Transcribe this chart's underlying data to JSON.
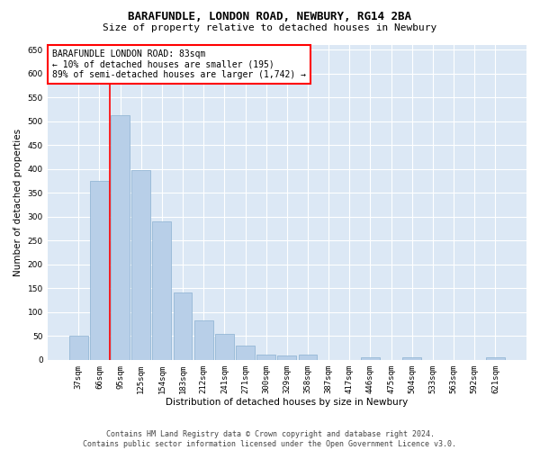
{
  "title": "BARAFUNDLE, LONDON ROAD, NEWBURY, RG14 2BA",
  "subtitle": "Size of property relative to detached houses in Newbury",
  "xlabel": "Distribution of detached houses by size in Newbury",
  "ylabel": "Number of detached properties",
  "categories": [
    "37sqm",
    "66sqm",
    "95sqm",
    "125sqm",
    "154sqm",
    "183sqm",
    "212sqm",
    "241sqm",
    "271sqm",
    "300sqm",
    "329sqm",
    "358sqm",
    "387sqm",
    "417sqm",
    "446sqm",
    "475sqm",
    "504sqm",
    "533sqm",
    "563sqm",
    "592sqm",
    "621sqm"
  ],
  "values": [
    50,
    375,
    512,
    398,
    291,
    142,
    82,
    54,
    29,
    11,
    9,
    11,
    0,
    0,
    5,
    0,
    5,
    0,
    0,
    0,
    5
  ],
  "bar_color": "#b8cfe8",
  "bar_edge_color": "#8ab0d0",
  "red_line_x": 1.5,
  "annotation_title": "BARAFUNDLE LONDON ROAD: 83sqm",
  "annotation_line1": "← 10% of detached houses are smaller (195)",
  "annotation_line2": "89% of semi-detached houses are larger (1,742) →",
  "ylim": [
    0,
    660
  ],
  "yticks": [
    0,
    50,
    100,
    150,
    200,
    250,
    300,
    350,
    400,
    450,
    500,
    550,
    600,
    650
  ],
  "footer_line1": "Contains HM Land Registry data © Crown copyright and database right 2024.",
  "footer_line2": "Contains public sector information licensed under the Open Government Licence v3.0.",
  "bg_color": "#ffffff",
  "plot_bg_color": "#dce8f5",
  "grid_color": "#ffffff",
  "title_fontsize": 9,
  "subtitle_fontsize": 8,
  "axis_label_fontsize": 7.5,
  "tick_fontsize": 6.5,
  "annotation_fontsize": 7,
  "footer_fontsize": 6
}
